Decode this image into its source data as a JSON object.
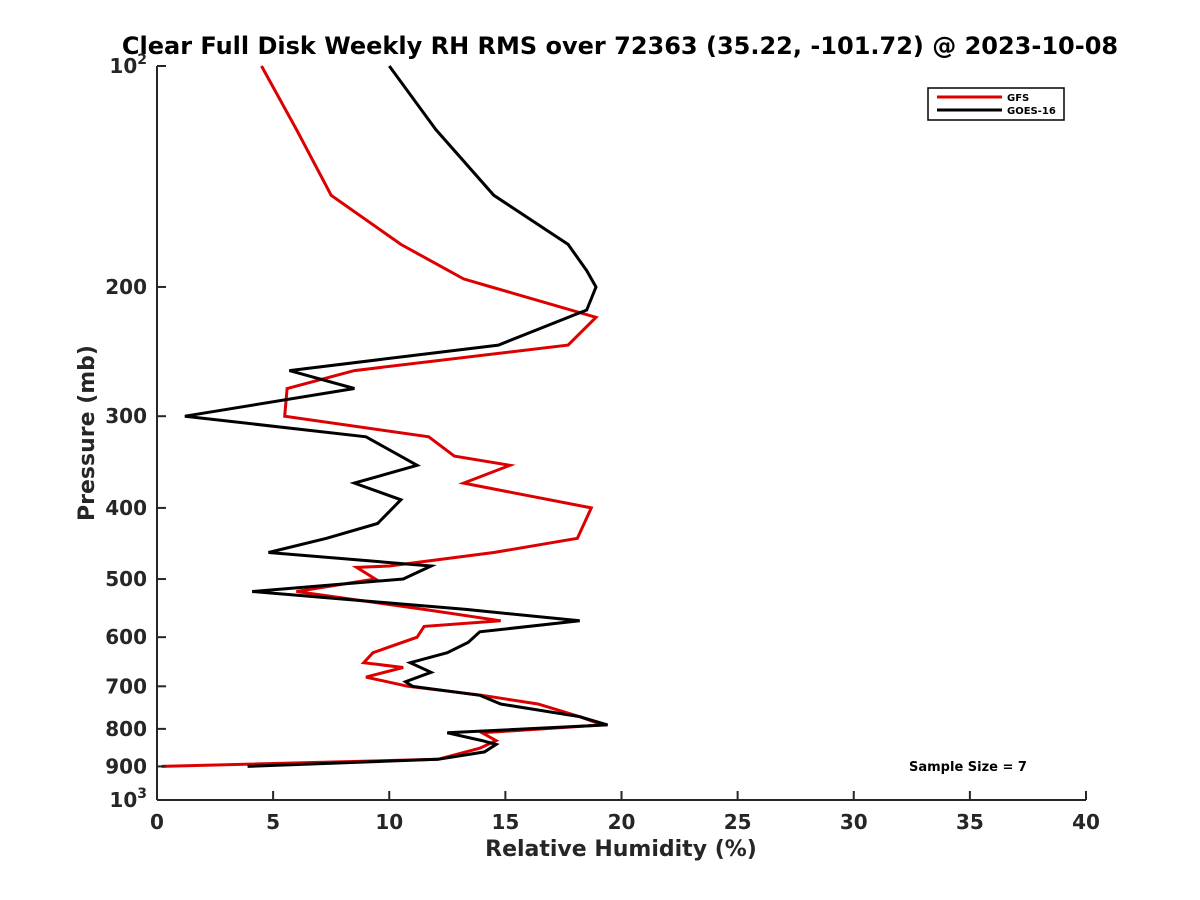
{
  "chart_data": {
    "type": "line",
    "title": "Clear Full Disk Weekly RH RMS over 72363 (35.22, -101.72) @ 2023-10-08",
    "xlabel": "Relative Humidity (%)",
    "ylabel": "Pressure (mb)",
    "xlim": [
      0,
      40
    ],
    "ylim": [
      100,
      1000
    ],
    "yscale": "log",
    "y_reversed": true,
    "grid": false,
    "legend_position": "top-right",
    "x_ticks": [
      0,
      5,
      10,
      15,
      20,
      25,
      30,
      35,
      40
    ],
    "x_tick_labels": [
      "0",
      "5",
      "10",
      "15",
      "20",
      "25",
      "30",
      "35",
      "40"
    ],
    "y_ticks": [
      100,
      200,
      300,
      400,
      500,
      600,
      700,
      800,
      900,
      1000
    ],
    "y_tick_labels": [
      {
        "base": "10",
        "exp": "2"
      },
      {
        "base": "200",
        "exp": ""
      },
      {
        "base": "300",
        "exp": ""
      },
      {
        "base": "400",
        "exp": ""
      },
      {
        "base": "500",
        "exp": ""
      },
      {
        "base": "600",
        "exp": ""
      },
      {
        "base": "700",
        "exp": ""
      },
      {
        "base": "800",
        "exp": ""
      },
      {
        "base": "900",
        "exp": ""
      },
      {
        "base": "10",
        "exp": "3"
      }
    ],
    "annotation": "Sample Size = 7",
    "series": [
      {
        "name": "GFS",
        "color": "#dd0000",
        "points": [
          [
            4.5,
            100
          ],
          [
            6.0,
            122
          ],
          [
            7.5,
            150
          ],
          [
            10.5,
            175
          ],
          [
            13.2,
            195
          ],
          [
            14.4,
            200
          ],
          [
            18.9,
            220
          ],
          [
            17.7,
            240
          ],
          [
            8.5,
            260
          ],
          [
            5.6,
            275
          ],
          [
            5.5,
            300
          ],
          [
            11.7,
            320
          ],
          [
            12.8,
            340
          ],
          [
            15.2,
            350
          ],
          [
            13.2,
            370
          ],
          [
            18.7,
            400
          ],
          [
            18.1,
            440
          ],
          [
            14.5,
            460
          ],
          [
            10.0,
            480
          ],
          [
            8.6,
            482
          ],
          [
            9.4,
            500
          ],
          [
            6.0,
            520
          ],
          [
            11.5,
            550
          ],
          [
            14.8,
            570
          ],
          [
            11.5,
            580
          ],
          [
            11.2,
            600
          ],
          [
            9.3,
            630
          ],
          [
            8.9,
            650
          ],
          [
            10.6,
            660
          ],
          [
            9.0,
            680
          ],
          [
            10.8,
            700
          ],
          [
            14.0,
            720
          ],
          [
            16.4,
            740
          ],
          [
            18.2,
            770
          ],
          [
            19.2,
            790
          ],
          [
            14.0,
            810
          ],
          [
            14.6,
            830
          ],
          [
            13.9,
            850
          ],
          [
            12.1,
            880
          ],
          [
            0.2,
            900
          ]
        ]
      },
      {
        "name": "GOES-16",
        "color": "#000000",
        "points": [
          [
            10.0,
            100
          ],
          [
            12.0,
            122
          ],
          [
            14.5,
            150
          ],
          [
            17.7,
            175
          ],
          [
            18.5,
            190
          ],
          [
            18.9,
            200
          ],
          [
            18.5,
            215
          ],
          [
            14.7,
            240
          ],
          [
            5.7,
            260
          ],
          [
            8.5,
            275
          ],
          [
            1.2,
            300
          ],
          [
            9.0,
            320
          ],
          [
            11.2,
            350
          ],
          [
            8.5,
            370
          ],
          [
            10.5,
            390
          ],
          [
            9.5,
            420
          ],
          [
            7.3,
            440
          ],
          [
            4.8,
            460
          ],
          [
            11.8,
            480
          ],
          [
            10.6,
            500
          ],
          [
            4.1,
            520
          ],
          [
            13.3,
            550
          ],
          [
            18.2,
            570
          ],
          [
            13.9,
            590
          ],
          [
            13.4,
            610
          ],
          [
            12.5,
            630
          ],
          [
            10.9,
            650
          ],
          [
            11.8,
            670
          ],
          [
            10.7,
            690
          ],
          [
            11.0,
            700
          ],
          [
            13.9,
            720
          ],
          [
            14.8,
            740
          ],
          [
            18.2,
            770
          ],
          [
            19.4,
            790
          ],
          [
            12.5,
            810
          ],
          [
            14.0,
            830
          ],
          [
            14.6,
            840
          ],
          [
            14.1,
            860
          ],
          [
            12.1,
            880
          ],
          [
            3.9,
            900
          ]
        ]
      }
    ]
  }
}
